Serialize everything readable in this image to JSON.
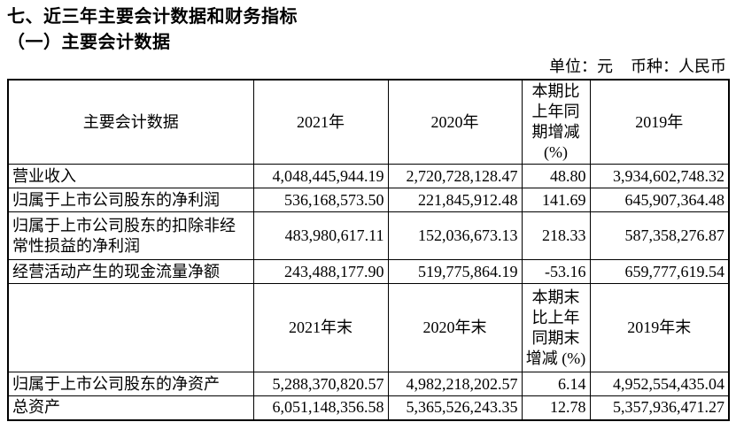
{
  "page": {
    "title": "七、近三年主要会计数据和财务指标",
    "subtitle": "（一）主要会计数据",
    "unit_label": "单位：元",
    "currency_label": "币种：人民币"
  },
  "table": {
    "header_row_1": [
      "主要会计数据",
      "2021年",
      "2020年",
      "本期比\n上年同\n期增减\n(%)",
      "2019年"
    ],
    "annual_rows": [
      [
        "营业收入",
        "4,048,445,944.19",
        "2,720,728,128.47",
        "48.80",
        "3,934,602,748.32"
      ],
      [
        "归属于上市公司股东的净利润",
        "536,168,573.50",
        "221,845,912.48",
        "141.69",
        "645,907,364.48"
      ],
      [
        "归属于上市公司股东的扣除非经常性损益的净利润",
        "483,980,617.11",
        "152,036,673.13",
        "218.33",
        "587,358,276.87"
      ],
      [
        "经营活动产生的现金流量净额",
        "243,488,177.90",
        "519,775,864.19",
        "-53.16",
        "659,777,619.54"
      ]
    ],
    "header_row_2": [
      "",
      "2021年末",
      "2020年末",
      "本期末\n比上年\n同期末\n增减 (%)",
      "2019年末"
    ],
    "yearend_rows": [
      [
        "归属于上市公司股东的净资产",
        "5,288,370,820.57",
        "4,982,218,202.57",
        "6.14",
        "4,952,554,435.04"
      ],
      [
        "总资产",
        "6,051,148,356.58",
        "5,365,526,243.35",
        "12.78",
        "5,357,936,471.27"
      ]
    ]
  }
}
